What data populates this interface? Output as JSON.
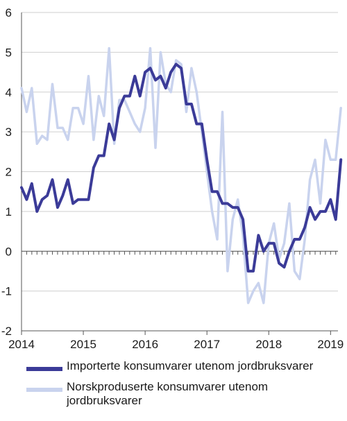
{
  "chart_data": {
    "type": "line",
    "title": "",
    "xlabel": "",
    "ylabel": "",
    "ylim": [
      -2,
      6
    ],
    "yticks": [
      "6",
      "5",
      "4",
      "3",
      "2",
      "1",
      "0",
      "-1",
      "-2"
    ],
    "xlim": [
      2014,
      2019.12
    ],
    "xtick_labels": [
      "2014",
      "2015",
      "2016",
      "2017",
      "2018",
      "2019"
    ],
    "grid": "horizontal",
    "legend_position": "bottom",
    "series": [
      {
        "name": "Norskproduserte konsumvarer utenom jordbruksvarer",
        "color": "#c9d3ee",
        "values": [
          4.1,
          3.5,
          4.1,
          2.7,
          2.9,
          2.8,
          4.2,
          3.1,
          3.1,
          2.8,
          3.6,
          3.6,
          3.2,
          4.4,
          2.8,
          3.9,
          3.4,
          5.1,
          2.7,
          3.8,
          3.8,
          3.5,
          3.2,
          3.0,
          3.6,
          5.1,
          2.6,
          5.0,
          4.2,
          4.0,
          4.8,
          4.7,
          3.5,
          4.6,
          4.0,
          3.0,
          2.0,
          1.0,
          0.3,
          3.5,
          -0.5,
          0.8,
          1.3,
          0.4,
          -1.3,
          -1.0,
          -0.8,
          -1.3,
          0.2,
          0.7,
          -0.2,
          0.2,
          1.2,
          -0.5,
          -0.7,
          0.3,
          1.8,
          2.3,
          1.2,
          2.8,
          2.3,
          2.3,
          3.6
        ]
      },
      {
        "name": "Importerte konsumvarer utenom jordbruksvarer",
        "color": "#3b3b98",
        "values": [
          1.6,
          1.3,
          1.7,
          1.0,
          1.3,
          1.4,
          1.8,
          1.1,
          1.4,
          1.8,
          1.2,
          1.3,
          1.3,
          1.3,
          2.1,
          2.4,
          2.4,
          3.2,
          2.8,
          3.6,
          3.9,
          3.9,
          4.4,
          3.9,
          4.5,
          4.6,
          4.3,
          4.4,
          4.1,
          4.5,
          4.7,
          4.6,
          3.7,
          3.7,
          3.2,
          3.2,
          2.3,
          1.5,
          1.5,
          1.2,
          1.2,
          1.1,
          1.1,
          0.8,
          -0.5,
          -0.5,
          0.4,
          0.0,
          0.2,
          0.2,
          -0.3,
          -0.4,
          0.0,
          0.3,
          0.3,
          0.6,
          1.1,
          0.8,
          1.0,
          1.0,
          1.3,
          0.8,
          2.3
        ]
      }
    ]
  }
}
